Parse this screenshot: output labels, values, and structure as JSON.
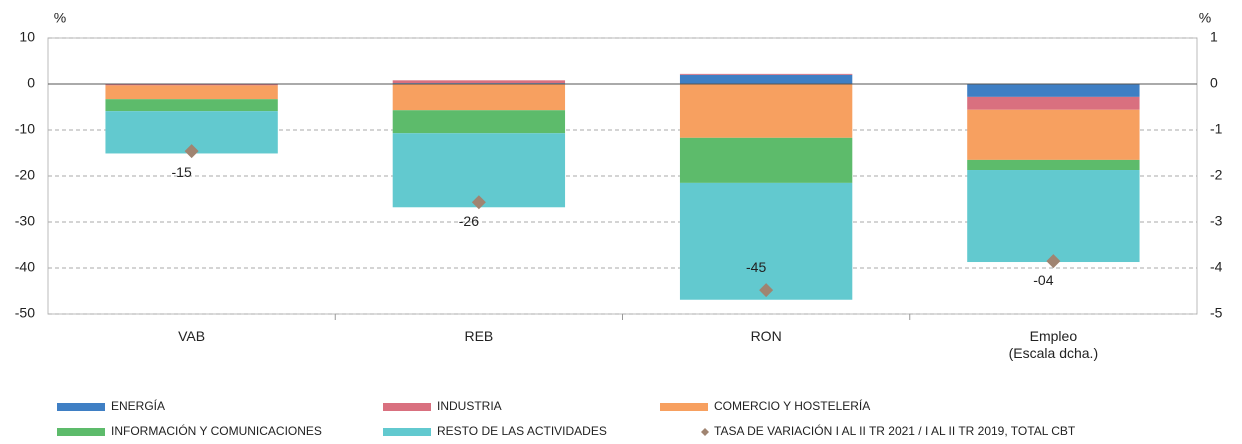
{
  "chart_data": {
    "type": "stacked_bar",
    "ylabel": "%",
    "y2label": "%",
    "categories": [
      "VAB",
      "REB",
      "RON",
      "Empleo\n(Escala dcha.)"
    ],
    "axis_by_category": [
      "y",
      "y",
      "y",
      "y2"
    ],
    "ylim": [
      -50,
      10
    ],
    "yticks": [
      10,
      0,
      -10,
      -20,
      -30,
      -40,
      -50
    ],
    "y2lim": [
      -5,
      1
    ],
    "y2ticks": [
      1,
      0,
      -1,
      -2,
      -3,
      -4,
      -5
    ],
    "grid": true,
    "series": [
      {
        "name": "ENERGÍA",
        "color": "#3f7fc4",
        "values": [
          -0.1,
          0.2,
          2.0,
          -0.28
        ]
      },
      {
        "name": "INDUSTRIA",
        "color": "#d9707f",
        "values": [
          -0.2,
          0.6,
          0.2,
          -0.28
        ]
      },
      {
        "name": "COMERCIO Y HOSTELERÍA",
        "color": "#f7a060",
        "values": [
          -3.0,
          -5.7,
          -11.7,
          -1.09
        ]
      },
      {
        "name": "INFORMACIÓN Y COMUNICACIONES",
        "color": "#5dbb6b",
        "values": [
          -2.6,
          -5.0,
          -9.8,
          -0.22
        ]
      },
      {
        "name": "RESTO DE LAS ACTIVIDADES",
        "color": "#62c9cf",
        "values": [
          -9.2,
          -16.1,
          -25.4,
          -2.0
        ]
      }
    ],
    "markers": {
      "name": "TASA DE VARIACIÓN I AL II TR 2021 / I AL II TR 2019, TOTAL CBT",
      "color": "#a08471",
      "values": [
        -14.6,
        -25.7,
        -44.8,
        -3.85
      ],
      "value_labels": [
        "-15",
        "-26",
        "-45",
        "-04"
      ]
    }
  }
}
